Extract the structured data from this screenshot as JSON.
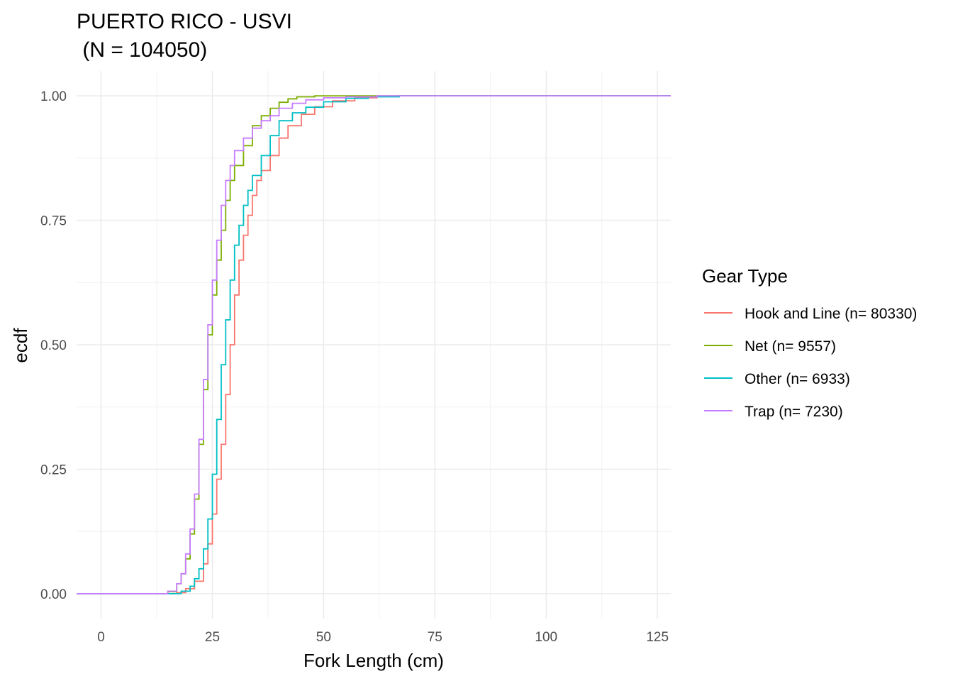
{
  "chart_data": {
    "type": "line",
    "title": "PUERTO RICO - USVI",
    "subtitle": " (N = 104050)",
    "xlabel": "Fork Length (cm)",
    "ylabel": "ecdf",
    "xlim": [
      -5.5,
      128
    ],
    "ylim": [
      -0.05,
      1.05
    ],
    "x_ticks": [
      0,
      25,
      50,
      75,
      100,
      125
    ],
    "x_tick_labels": [
      "0",
      "25",
      "50",
      "75",
      "100",
      "125"
    ],
    "y_ticks": [
      0,
      0.25,
      0.5,
      0.75,
      1.0
    ],
    "y_tick_labels": [
      "0.00",
      "0.25",
      "0.50",
      "0.75",
      "1.00"
    ],
    "grid": true,
    "legend": {
      "title": "Gear Type",
      "placement": "right"
    },
    "series": [
      {
        "name": "Hook and Line (n= 80330)",
        "color": "#F8766D",
        "points": [
          [
            -5.5,
            0
          ],
          [
            15,
            0
          ],
          [
            17,
            0.002
          ],
          [
            19,
            0.01
          ],
          [
            21,
            0.025
          ],
          [
            23,
            0.06
          ],
          [
            24,
            0.1
          ],
          [
            25,
            0.16
          ],
          [
            26,
            0.23
          ],
          [
            27,
            0.3
          ],
          [
            28,
            0.4
          ],
          [
            29,
            0.5
          ],
          [
            30,
            0.6
          ],
          [
            31,
            0.67
          ],
          [
            32,
            0.72
          ],
          [
            33,
            0.76
          ],
          [
            34,
            0.8
          ],
          [
            35,
            0.83
          ],
          [
            36,
            0.85
          ],
          [
            38,
            0.88
          ],
          [
            40,
            0.915
          ],
          [
            42,
            0.94
          ],
          [
            45,
            0.963
          ],
          [
            48,
            0.978
          ],
          [
            52,
            0.99
          ],
          [
            57,
            0.996
          ],
          [
            62,
            0.999
          ],
          [
            67,
            1.0
          ],
          [
            128,
            1.0
          ]
        ]
      },
      {
        "name": "Net (n= 9557)",
        "color": "#7CAE00",
        "points": [
          [
            -5.5,
            0
          ],
          [
            12,
            0
          ],
          [
            15,
            0.004
          ],
          [
            17,
            0.02
          ],
          [
            18,
            0.04
          ],
          [
            19,
            0.07
          ],
          [
            20,
            0.12
          ],
          [
            21,
            0.19
          ],
          [
            22,
            0.3
          ],
          [
            23,
            0.41
          ],
          [
            24,
            0.52
          ],
          [
            25,
            0.6
          ],
          [
            26,
            0.67
          ],
          [
            27,
            0.73
          ],
          [
            28,
            0.79
          ],
          [
            29,
            0.83
          ],
          [
            30,
            0.86
          ],
          [
            32,
            0.9
          ],
          [
            34,
            0.94
          ],
          [
            36,
            0.96
          ],
          [
            38,
            0.975
          ],
          [
            40,
            0.987
          ],
          [
            42,
            0.994
          ],
          [
            44,
            0.998
          ],
          [
            48,
            1.0
          ],
          [
            128,
            1.0
          ]
        ]
      },
      {
        "name": "Other (n= 6933)",
        "color": "#00BFC4",
        "points": [
          [
            -5.5,
            0
          ],
          [
            16,
            0
          ],
          [
            18,
            0.005
          ],
          [
            20,
            0.015
          ],
          [
            21,
            0.03
          ],
          [
            22,
            0.05
          ],
          [
            23,
            0.09
          ],
          [
            24,
            0.15
          ],
          [
            25,
            0.24
          ],
          [
            26,
            0.35
          ],
          [
            27,
            0.46
          ],
          [
            28,
            0.55
          ],
          [
            29,
            0.63
          ],
          [
            30,
            0.7
          ],
          [
            31,
            0.74
          ],
          [
            32,
            0.78
          ],
          [
            33,
            0.81
          ],
          [
            34,
            0.84
          ],
          [
            36,
            0.88
          ],
          [
            38,
            0.92
          ],
          [
            40,
            0.95
          ],
          [
            43,
            0.966
          ],
          [
            46,
            0.977
          ],
          [
            50,
            0.988
          ],
          [
            55,
            0.995
          ],
          [
            60,
            0.998
          ],
          [
            67,
            1.0
          ],
          [
            128,
            1.0
          ]
        ]
      },
      {
        "name": "Trap (n= 7230)",
        "color": "#C77CFF",
        "points": [
          [
            -5.5,
            0
          ],
          [
            12,
            0
          ],
          [
            15,
            0.005
          ],
          [
            17,
            0.02
          ],
          [
            18,
            0.04
          ],
          [
            19,
            0.08
          ],
          [
            20,
            0.13
          ],
          [
            21,
            0.2
          ],
          [
            22,
            0.31
          ],
          [
            23,
            0.43
          ],
          [
            24,
            0.54
          ],
          [
            25,
            0.63
          ],
          [
            26,
            0.71
          ],
          [
            27,
            0.78
          ],
          [
            28,
            0.83
          ],
          [
            29,
            0.86
          ],
          [
            30,
            0.89
          ],
          [
            32,
            0.915
          ],
          [
            34,
            0.935
          ],
          [
            36,
            0.95
          ],
          [
            38,
            0.96
          ],
          [
            40,
            0.975
          ],
          [
            43,
            0.985
          ],
          [
            46,
            0.992
          ],
          [
            50,
            0.996
          ],
          [
            55,
            0.998
          ],
          [
            62,
            1.0
          ],
          [
            128,
            1.0
          ]
        ]
      }
    ]
  }
}
